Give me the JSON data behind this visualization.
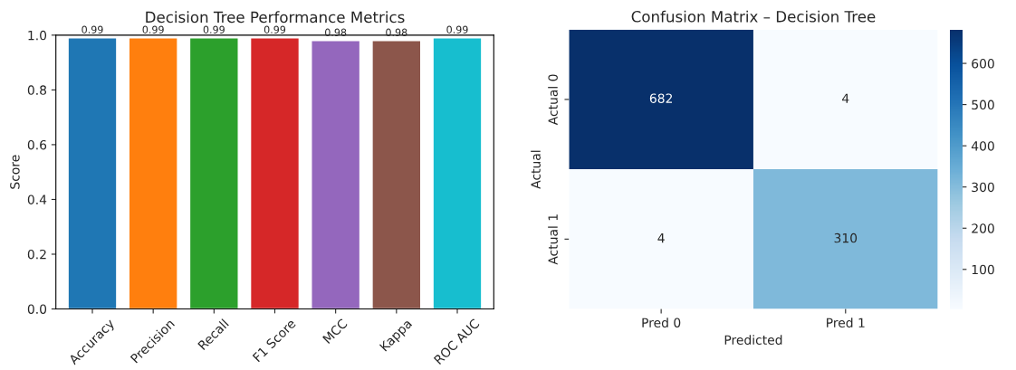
{
  "chart_data": [
    {
      "type": "bar",
      "title": "Decision Tree Performance Metrics",
      "ylabel": "Score",
      "categories": [
        "Accuracy",
        "Precision",
        "Recall",
        "F1 Score",
        "MCC",
        "Kappa",
        "ROC AUC"
      ],
      "values": [
        0.99,
        0.99,
        0.99,
        0.99,
        0.98,
        0.98,
        0.99
      ],
      "colors": [
        "#1f77b4",
        "#ff7f0e",
        "#2ca02c",
        "#d62728",
        "#9467bd",
        "#8c564b",
        "#17becf"
      ],
      "ylim": [
        0,
        1
      ],
      "yticks": [
        {
          "value": 0,
          "label": "0.0"
        },
        {
          "value": 0.2,
          "label": "0.2"
        },
        {
          "value": 0.4,
          "label": "0.4"
        },
        {
          "value": 0.6,
          "label": "0.6"
        },
        {
          "value": 0.8,
          "label": "0.8"
        },
        {
          "value": 1,
          "label": "1.0"
        }
      ],
      "data_labels": true
    },
    {
      "type": "heatmap",
      "title": "Confusion Matrix – Decision Tree",
      "xlabel": "Predicted",
      "ylabel": "Actual",
      "categories": [
        "Pred 0",
        "Pred 1"
      ],
      "y_categories": [
        "Actual 0",
        "Actual 1"
      ],
      "cells": [
        [
          682,
          4
        ],
        [
          4,
          310
        ]
      ],
      "clim": [
        4,
        682
      ],
      "cticks": [
        100,
        200,
        300,
        400,
        500,
        600
      ],
      "data_labels": true
    }
  ]
}
